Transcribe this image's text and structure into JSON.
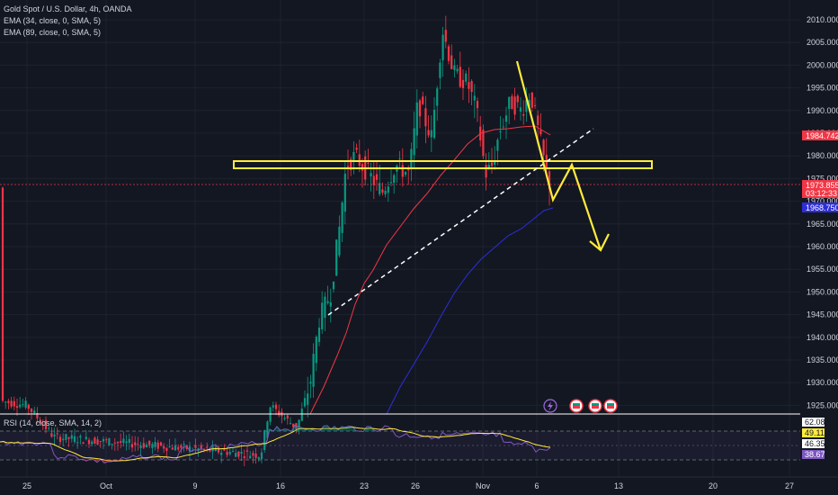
{
  "legend": {
    "symbol": "Gold Spot / U.S. Dollar, 4h, OANDA",
    "ema34": "EMA (34, close, 0, SMA, 5)",
    "ema89": "EMA (89, close, 0, SMA, 5)",
    "rsi": "RSI (14, close, SMA, 14, 2)"
  },
  "price_axis": [
    "2010.000",
    "2005.000",
    "2000.000",
    "1995.000",
    "1990.000",
    "1985.000",
    "1980.000",
    "1975.000",
    "1970.000",
    "1965.000",
    "1960.000",
    "1955.000",
    "1950.000",
    "1945.000",
    "1940.000",
    "1935.000",
    "1930.000",
    "1925.000"
  ],
  "price_badges": {
    "ema34": {
      "value": "1984.742",
      "color": "#f23645"
    },
    "current": {
      "value": "1973.855",
      "color": "#f23645"
    },
    "countdown": {
      "value": "03:12:33",
      "color": "#f23645"
    },
    "ema89": {
      "value": "1968.750",
      "color": "#2e2ed6"
    }
  },
  "rsi_badges": {
    "top": "62.08",
    "rsi": "49.11",
    "ma": "46.35",
    "bottom": "38.67"
  },
  "time_axis": [
    "25",
    "Oct",
    "9",
    "16",
    "23",
    "26",
    "Nov",
    "6",
    "13",
    "20",
    "27"
  ],
  "colors": {
    "background": "#131722",
    "up": "#089981",
    "down": "#f23645",
    "ema34": "#f23645",
    "ema89": "#2e2ed6",
    "drawing": "#ffeb3b",
    "trendline": "#ffffff"
  },
  "icons": [
    "lightning-icon",
    "earnings-flag-icon",
    "earnings-flag-icon",
    "earnings-flag-icon"
  ]
}
